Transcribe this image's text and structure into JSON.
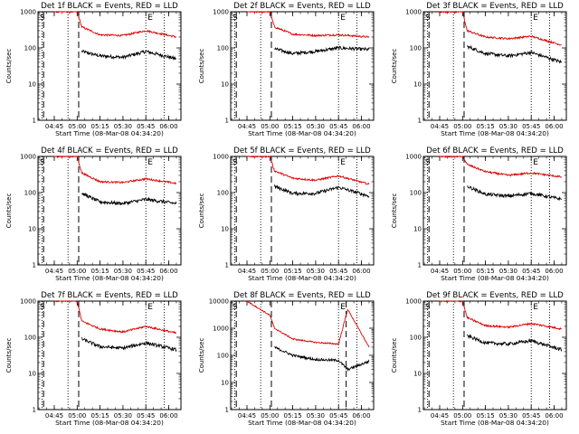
{
  "colors": {
    "events": "#000000",
    "lld": "#dd0000",
    "axis": "#000000",
    "background": "#ffffff"
  },
  "panels": [
    {
      "title": "Det 1f BLACK = Events, RED = LLD",
      "xlabel": "Start Time (08-Mar-08 04:34:20)",
      "ylabel": "Counts/sec",
      "corner_left": "S",
      "corner_right": "E"
    },
    {
      "title": "Det 2f BLACK = Events, RED = LLD",
      "xlabel": "Start Time (08-Mar-08 04:34:20)",
      "ylabel": "Counts/sec",
      "corner_left": "S",
      "corner_right": "E"
    },
    {
      "title": "Det 3f BLACK = Events, RED = LLD",
      "xlabel": "Start Time (08-Mar-08 04:34:20)",
      "ylabel": "Counts/sec",
      "corner_left": "S",
      "corner_right": "E"
    },
    {
      "title": "Det 4f BLACK = Events, RED = LLD",
      "xlabel": "Start Time (08-Mar-08 04:34:20)",
      "ylabel": "Counts/sec",
      "corner_left": "S",
      "corner_right": "E"
    },
    {
      "title": "Det 5f BLACK = Events, RED = LLD",
      "xlabel": "Start Time (08-Mar-08 04:34:20)",
      "ylabel": "Counts/sec",
      "corner_left": "S",
      "corner_right": "E"
    },
    {
      "title": "Det 6f BLACK = Events, RED = LLD",
      "xlabel": "Start Time (08-Mar-08 04:34:20)",
      "ylabel": "Counts/sec",
      "corner_left": "S",
      "corner_right": "E"
    },
    {
      "title": "Det 7f BLACK = Events, RED = LLD",
      "xlabel": "Start Time (08-Mar-08 04:34:20)",
      "ylabel": "Counts/sec",
      "corner_left": "S",
      "corner_right": "E"
    },
    {
      "title": "Det 8f BLACK = Events, RED = LLD",
      "xlabel": "Start Time (08-Mar-08 04:34:20)",
      "ylabel": "Counts/sec",
      "corner_left": "S",
      "corner_right": "E"
    },
    {
      "title": "Det 9f BLACK = Events, RED = LLD",
      "xlabel": "Start Time (08-Mar-08 04:34:20)",
      "ylabel": "Counts/sec",
      "corner_left": "S",
      "corner_right": "E"
    }
  ],
  "chart_data": [
    {
      "type": "line",
      "detector": "1f",
      "x_ticks": [
        "04:45",
        "05:00",
        "05:15",
        "05:30",
        "05:45",
        "06:00"
      ],
      "y_ticks": [
        "1",
        "10",
        "100",
        "1000"
      ],
      "ylim": [
        1,
        1000
      ],
      "y_scale": "log",
      "grid": false,
      "xlim": [
        "04:34:20",
        "06:08"
      ],
      "x": [
        "04:45",
        "05:00",
        "05:03",
        "05:15",
        "05:30",
        "05:45",
        "06:05"
      ],
      "series": [
        {
          "name": "Events",
          "color": "black",
          "values": [
            null,
            null,
            80,
            60,
            55,
            80,
            50
          ]
        },
        {
          "name": "LLD",
          "color": "red",
          "values": [
            1000,
            1000,
            380,
            230,
            220,
            300,
            200
          ]
        }
      ],
      "markers": {
        "dotted": [
          "04:37",
          "04:54",
          "05:45",
          "05:57"
        ],
        "dashed": [
          "04:38",
          "05:01"
        ]
      }
    },
    {
      "type": "line",
      "detector": "2f",
      "x_ticks": [
        "04:45",
        "05:00",
        "05:15",
        "05:30",
        "05:45",
        "06:00"
      ],
      "y_ticks": [
        "1",
        "10",
        "100",
        "1000"
      ],
      "ylim": [
        1,
        1000
      ],
      "y_scale": "log",
      "grid": false,
      "xlim": [
        "04:34:20",
        "06:08"
      ],
      "x": [
        "04:45",
        "05:00",
        "05:03",
        "05:15",
        "05:30",
        "05:45",
        "06:05"
      ],
      "series": [
        {
          "name": "Events",
          "color": "black",
          "values": [
            null,
            null,
            95,
            70,
            80,
            100,
            90
          ]
        },
        {
          "name": "LLD",
          "color": "red",
          "values": [
            1000,
            1000,
            380,
            240,
            220,
            230,
            200
          ]
        }
      ],
      "markers": {
        "dotted": [
          "04:37",
          "04:54",
          "05:45",
          "05:57"
        ],
        "dashed": [
          "04:38",
          "05:01"
        ]
      }
    },
    {
      "type": "line",
      "detector": "3f",
      "x_ticks": [
        "04:45",
        "05:00",
        "05:15",
        "05:30",
        "05:45",
        "06:00"
      ],
      "y_ticks": [
        "1",
        "10",
        "100",
        "1000"
      ],
      "ylim": [
        1,
        1000
      ],
      "y_scale": "log",
      "grid": false,
      "xlim": [
        "04:34:20",
        "06:08"
      ],
      "x": [
        "04:45",
        "05:00",
        "05:03",
        "05:15",
        "05:30",
        "05:45",
        "06:05"
      ],
      "series": [
        {
          "name": "Events",
          "color": "black",
          "values": [
            null,
            null,
            110,
            70,
            60,
            75,
            40
          ]
        },
        {
          "name": "LLD",
          "color": "red",
          "values": [
            1000,
            1000,
            300,
            200,
            180,
            210,
            120
          ]
        }
      ],
      "markers": {
        "dotted": [
          "04:37",
          "04:54",
          "05:45",
          "05:57"
        ],
        "dashed": [
          "04:38",
          "05:01"
        ]
      }
    },
    {
      "type": "line",
      "detector": "4f",
      "x_ticks": [
        "04:45",
        "05:00",
        "05:15",
        "05:30",
        "05:45",
        "06:00"
      ],
      "y_ticks": [
        "1",
        "10",
        "100",
        "1000"
      ],
      "ylim": [
        1,
        1000
      ],
      "y_scale": "log",
      "grid": false,
      "xlim": [
        "04:34:20",
        "06:08"
      ],
      "x": [
        "04:45",
        "05:00",
        "05:03",
        "05:15",
        "05:30",
        "05:45",
        "06:05"
      ],
      "series": [
        {
          "name": "Events",
          "color": "black",
          "values": [
            null,
            null,
            95,
            55,
            50,
            65,
            50
          ]
        },
        {
          "name": "LLD",
          "color": "red",
          "values": [
            1000,
            1000,
            350,
            200,
            190,
            240,
            180
          ]
        }
      ],
      "markers": {
        "dotted": [
          "04:37",
          "04:54",
          "05:45",
          "05:57"
        ],
        "dashed": [
          "04:38",
          "05:01"
        ]
      }
    },
    {
      "type": "line",
      "detector": "5f",
      "x_ticks": [
        "04:45",
        "05:00",
        "05:15",
        "05:30",
        "05:45",
        "06:00"
      ],
      "y_ticks": [
        "1",
        "10",
        "100",
        "1000"
      ],
      "ylim": [
        1,
        1000
      ],
      "y_scale": "log",
      "grid": false,
      "xlim": [
        "04:34:20",
        "06:08"
      ],
      "x": [
        "04:45",
        "05:00",
        "05:03",
        "05:15",
        "05:30",
        "05:45",
        "06:05"
      ],
      "series": [
        {
          "name": "Events",
          "color": "black",
          "values": [
            null,
            null,
            150,
            95,
            95,
            140,
            80
          ]
        },
        {
          "name": "LLD",
          "color": "red",
          "values": [
            1000,
            1000,
            400,
            250,
            220,
            290,
            170
          ]
        }
      ],
      "markers": {
        "dotted": [
          "04:37",
          "04:54",
          "05:45",
          "05:57"
        ],
        "dashed": [
          "04:38",
          "05:01"
        ]
      }
    },
    {
      "type": "line",
      "detector": "6f",
      "x_ticks": [
        "04:45",
        "05:00",
        "05:15",
        "05:30",
        "05:45",
        "06:00"
      ],
      "y_ticks": [
        "1",
        "10",
        "100",
        "1000"
      ],
      "ylim": [
        1,
        1000
      ],
      "y_scale": "log",
      "grid": false,
      "xlim": [
        "04:34:20",
        "06:08"
      ],
      "x": [
        "04:45",
        "05:00",
        "05:03",
        "05:15",
        "05:30",
        "05:45",
        "06:05"
      ],
      "series": [
        {
          "name": "Events",
          "color": "black",
          "values": [
            null,
            null,
            150,
            90,
            80,
            95,
            65
          ]
        },
        {
          "name": "LLD",
          "color": "red",
          "values": [
            1000,
            1000,
            600,
            380,
            300,
            350,
            270
          ]
        }
      ],
      "markers": {
        "dotted": [
          "04:37",
          "04:54",
          "05:45",
          "05:57"
        ],
        "dashed": [
          "04:38",
          "05:01"
        ]
      }
    },
    {
      "type": "line",
      "detector": "7f",
      "x_ticks": [
        "04:45",
        "05:00",
        "05:15",
        "05:30",
        "05:45",
        "06:00"
      ],
      "y_ticks": [
        "1",
        "10",
        "100",
        "1000"
      ],
      "ylim": [
        1,
        1000
      ],
      "y_scale": "log",
      "grid": false,
      "xlim": [
        "04:34:20",
        "06:08"
      ],
      "x": [
        "04:45",
        "05:00",
        "05:03",
        "05:15",
        "05:30",
        "05:45",
        "06:05"
      ],
      "series": [
        {
          "name": "Events",
          "color": "black",
          "values": [
            null,
            null,
            90,
            55,
            50,
            70,
            45
          ]
        },
        {
          "name": "LLD",
          "color": "red",
          "values": [
            1000,
            1000,
            280,
            170,
            140,
            200,
            130
          ]
        }
      ],
      "markers": {
        "dotted": [
          "04:37",
          "04:54",
          "05:45",
          "05:57"
        ],
        "dashed": [
          "04:38",
          "05:01"
        ]
      }
    },
    {
      "type": "line",
      "detector": "8f",
      "x_ticks": [
        "04:45",
        "05:00",
        "05:15",
        "05:30",
        "05:45",
        "06:00"
      ],
      "y_ticks": [
        "1",
        "10",
        "100",
        "1000",
        "10000"
      ],
      "ylim": [
        1,
        10000
      ],
      "y_scale": "log",
      "grid": false,
      "xlim": [
        "04:34:20",
        "06:08"
      ],
      "x": [
        "04:45",
        "05:00",
        "05:03",
        "05:15",
        "05:30",
        "05:45",
        "05:51",
        "06:05"
      ],
      "series": [
        {
          "name": "Events",
          "color": "black",
          "values": [
            null,
            null,
            200,
            100,
            70,
            65,
            30,
            60
          ]
        },
        {
          "name": "LLD",
          "color": "red",
          "values": [
            10000,
            3000,
            1000,
            400,
            300,
            260,
            5000,
            200
          ]
        }
      ],
      "markers": {
        "dotted": [
          "04:37",
          "04:54",
          "05:45",
          "05:57"
        ],
        "dashed": [
          "04:38",
          "05:01",
          "05:50"
        ]
      }
    },
    {
      "type": "line",
      "detector": "9f",
      "x_ticks": [
        "04:45",
        "05:00",
        "05:15",
        "05:30",
        "05:45",
        "06:00"
      ],
      "y_ticks": [
        "1",
        "10",
        "100",
        "1000"
      ],
      "ylim": [
        1,
        1000
      ],
      "y_scale": "log",
      "grid": false,
      "xlim": [
        "04:34:20",
        "06:08"
      ],
      "x": [
        "04:45",
        "05:00",
        "05:03",
        "05:15",
        "05:30",
        "05:45",
        "06:05"
      ],
      "series": [
        {
          "name": "Events",
          "color": "black",
          "values": [
            null,
            null,
            110,
            70,
            65,
            80,
            45
          ]
        },
        {
          "name": "LLD",
          "color": "red",
          "values": [
            1000,
            1000,
            350,
            210,
            190,
            240,
            170
          ]
        }
      ],
      "markers": {
        "dotted": [
          "04:37",
          "04:54",
          "05:45",
          "05:57"
        ],
        "dashed": [
          "04:38",
          "05:01"
        ]
      }
    }
  ]
}
